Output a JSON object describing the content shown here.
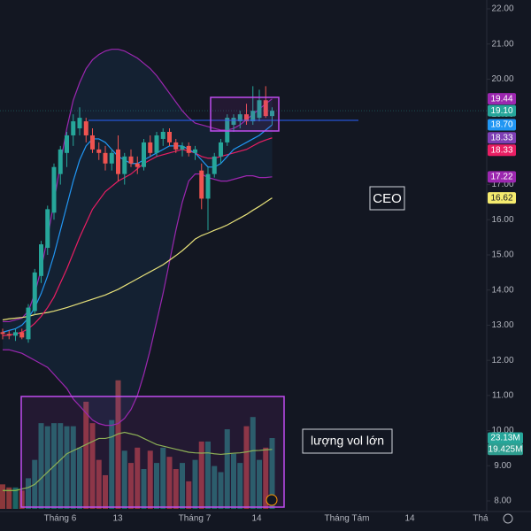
{
  "chart_data": {
    "type": "candlestick",
    "title": "CEO",
    "annotation": "lượng vol lớn",
    "categories": [
      null,
      null,
      null,
      null,
      null,
      null,
      null,
      null,
      null,
      null,
      null,
      null,
      null,
      null,
      null,
      null,
      null,
      null,
      null,
      null,
      null,
      null,
      null,
      null,
      null,
      null,
      null,
      null,
      null,
      null,
      null,
      null,
      null,
      null,
      null,
      null,
      null,
      null,
      null,
      null,
      null,
      null,
      null
    ],
    "open": [
      12.8,
      12.75,
      12.7,
      12.8,
      12.6,
      13.4,
      14.4,
      15.2,
      16.2,
      17.3,
      17.9,
      18.4,
      18.6,
      18.8,
      18.4,
      18.0,
      17.9,
      17.6,
      18.0,
      17.3,
      17.8,
      17.6,
      17.5,
      18.2,
      17.9,
      18.3,
      18.5,
      18.2,
      18.0,
      18.1,
      17.9,
      17.4,
      16.6,
      17.3,
      17.8,
      18.2,
      18.7,
      18.8,
      19.0,
      18.8,
      18.9,
      19.4,
      18.95
    ],
    "high": [
      12.9,
      12.85,
      12.9,
      12.9,
      13.6,
      14.6,
      15.4,
      16.4,
      17.6,
      18.1,
      18.5,
      19.0,
      19.2,
      18.9,
      18.6,
      18.2,
      18.1,
      18.0,
      18.4,
      17.9,
      18.0,
      17.8,
      18.3,
      18.4,
      18.5,
      18.6,
      18.6,
      18.3,
      18.2,
      18.2,
      18.1,
      17.6,
      17.5,
      17.9,
      18.3,
      19.0,
      19.0,
      19.1,
      19.3,
      19.8,
      19.7,
      19.8,
      19.2
    ],
    "low": [
      12.6,
      12.6,
      12.55,
      12.6,
      12.5,
      13.3,
      14.2,
      15.0,
      16.0,
      17.0,
      17.5,
      18.1,
      18.4,
      18.2,
      17.9,
      17.7,
      17.4,
      17.4,
      17.1,
      17.0,
      17.5,
      17.3,
      17.4,
      17.8,
      17.8,
      18.1,
      18.1,
      17.9,
      17.8,
      17.8,
      17.7,
      16.3,
      15.7,
      17.2,
      17.6,
      18.1,
      18.5,
      18.6,
      18.7,
      18.7,
      18.8,
      18.9,
      18.7
    ],
    "close": [
      12.75,
      12.7,
      12.8,
      12.65,
      13.5,
      14.5,
      15.3,
      16.3,
      17.5,
      18.0,
      18.4,
      18.8,
      18.9,
      18.4,
      18.0,
      17.9,
      17.6,
      17.9,
      17.3,
      17.8,
      17.6,
      17.5,
      18.2,
      17.9,
      18.4,
      18.5,
      18.2,
      18.0,
      18.1,
      17.9,
      18.0,
      16.6,
      17.3,
      17.8,
      18.2,
      18.9,
      18.9,
      19.0,
      18.8,
      19.1,
      19.4,
      18.95,
      19.1
    ],
    "up_color": "#26a69a",
    "down_color": "#ef5350",
    "bands": {
      "color": "#9c27b0",
      "fill": "#2196f3",
      "upper": [
        13.1,
        13.1,
        13.15,
        13.2,
        13.4,
        13.9,
        14.6,
        15.5,
        16.5,
        17.6,
        18.6,
        19.4,
        19.9,
        20.3,
        20.55,
        20.7,
        20.8,
        20.85,
        20.85,
        20.8,
        20.7,
        20.6,
        20.45,
        20.3,
        20.1,
        19.85,
        19.6,
        19.35,
        19.1,
        18.9,
        18.75,
        18.7,
        18.65,
        18.6,
        18.55,
        18.55,
        18.6,
        18.7,
        18.85,
        19.0,
        19.15,
        19.3,
        19.44
      ],
      "lower": [
        12.3,
        12.3,
        12.25,
        12.2,
        12.1,
        12.0,
        11.9,
        11.8,
        11.6,
        11.4,
        11.2,
        10.9,
        10.7,
        10.5,
        10.3,
        10.2,
        10.15,
        10.15,
        10.2,
        10.35,
        10.6,
        11.0,
        11.6,
        12.3,
        13.1,
        13.9,
        14.8,
        15.7,
        16.5,
        17.1,
        17.3,
        17.3,
        17.2,
        17.15,
        17.1,
        17.1,
        17.15,
        17.2,
        17.25,
        17.25,
        17.2,
        17.2,
        17.22
      ]
    },
    "lines": [
      {
        "color": "#e8e27a",
        "values": [
          13.15,
          13.18,
          13.2,
          13.22,
          13.25,
          13.3,
          13.33,
          13.36,
          13.4,
          13.45,
          13.5,
          13.56,
          13.62,
          13.68,
          13.74,
          13.8,
          13.86,
          13.94,
          14.02,
          14.12,
          14.22,
          14.32,
          14.42,
          14.52,
          14.62,
          14.72,
          14.85,
          14.98,
          15.12,
          15.28,
          15.45,
          15.55,
          15.62,
          15.7,
          15.77,
          15.85,
          15.95,
          16.05,
          16.15,
          16.27,
          16.38,
          16.5,
          16.62
        ]
      },
      {
        "color": "#e91e63",
        "values": [
          12.7,
          12.72,
          12.75,
          12.8,
          12.9,
          13.05,
          13.25,
          13.5,
          13.8,
          14.2,
          14.6,
          15.05,
          15.5,
          15.9,
          16.3,
          16.55,
          16.8,
          16.95,
          17.1,
          17.2,
          17.3,
          17.45,
          17.6,
          17.7,
          17.8,
          17.85,
          17.9,
          17.95,
          18.0,
          17.95,
          17.9,
          17.8,
          17.75,
          17.75,
          17.8,
          17.85,
          17.9,
          17.95,
          18.0,
          18.1,
          18.2,
          18.27,
          18.33
        ]
      },
      {
        "color": "#2196f3",
        "values": [
          12.8,
          12.85,
          12.9,
          13.0,
          13.2,
          13.5,
          13.9,
          14.4,
          15.0,
          15.7,
          16.4,
          17.1,
          17.7,
          18.1,
          18.3,
          18.3,
          18.2,
          18.0,
          17.8,
          17.7,
          17.6,
          17.6,
          17.7,
          17.8,
          17.9,
          18.0,
          18.1,
          18.1,
          18.1,
          18.0,
          17.9,
          17.7,
          17.5,
          17.5,
          17.6,
          17.8,
          18.0,
          18.1,
          18.2,
          18.3,
          18.4,
          18.55,
          18.7
        ]
      }
    ],
    "volume": [
      8,
      7,
      7,
      6,
      10,
      16,
      28,
      27,
      28,
      28,
      27,
      27,
      20,
      35,
      28,
      16,
      11,
      29,
      42,
      19,
      15,
      20,
      13,
      19,
      15,
      20,
      17,
      13,
      15,
      9,
      16,
      22,
      22,
      14,
      12,
      26,
      18,
      15,
      27,
      30,
      16,
      20,
      23.13
    ],
    "volume_ma": {
      "color": "#8bc34a",
      "values": [
        6,
        6,
        6,
        6.5,
        7,
        8,
        10,
        12,
        14,
        16,
        18,
        19,
        20,
        21,
        22,
        23,
        23,
        23.5,
        24.5,
        25,
        24.5,
        24,
        23,
        22,
        21,
        20.5,
        20,
        19.5,
        19,
        18.5,
        18.3,
        18.2,
        18.3,
        18,
        17.8,
        18,
        18.2,
        18.3,
        18.6,
        19,
        19.1,
        19.3,
        19.425
      ]
    },
    "vlim": [
      0,
      42
    ],
    "ylim": [
      8,
      22
    ],
    "yticks": [
      {
        "value": 22,
        "label": "22.00"
      },
      {
        "value": 21,
        "label": "21.00"
      },
      {
        "value": 20,
        "label": "20.00"
      },
      {
        "value": 19,
        "label": "19.00"
      },
      {
        "value": 18,
        "label": "18.00"
      },
      {
        "value": 17,
        "label": "17.00"
      },
      {
        "value": 16,
        "label": "16.00"
      },
      {
        "value": 15,
        "label": "15.00"
      },
      {
        "value": 14,
        "label": "14.00"
      },
      {
        "value": 13,
        "label": "13.00"
      },
      {
        "value": 12,
        "label": "12.00"
      },
      {
        "value": 11,
        "label": "11.00"
      },
      {
        "value": 10,
        "label": "10.00"
      },
      {
        "value": 9,
        "label": "9.00"
      },
      {
        "value": 8,
        "label": "8.00"
      }
    ],
    "price_labels": [
      {
        "value": 19.44,
        "label": "19.44",
        "color": "#9c27b0"
      },
      {
        "value": 19.1,
        "label": "19.10",
        "color": "#26a69a"
      },
      {
        "value": 18.7,
        "label": "18.70",
        "color": "#2196f3"
      },
      {
        "value": 18.33,
        "label": "18.33",
        "color": "#7e3fb5"
      },
      {
        "value": 18.33,
        "label": "18.33",
        "color": "#e91e63"
      },
      {
        "value": 17.22,
        "label": "17.22",
        "color": "#9c27b0"
      },
      {
        "value": 16.62,
        "label": "16.62",
        "color": "#f5eb6e"
      }
    ],
    "volume_labels": [
      {
        "value": 23.13,
        "label": "23.13M",
        "color": "#26a69a"
      },
      {
        "value": 19.425,
        "label": "19.425M",
        "color": "#2e9d8f"
      }
    ],
    "xtick_labels": [
      "Tháng 6",
      "13",
      "Tháng 7",
      "14",
      "Tháng Tám",
      "14",
      "Thá"
    ]
  }
}
